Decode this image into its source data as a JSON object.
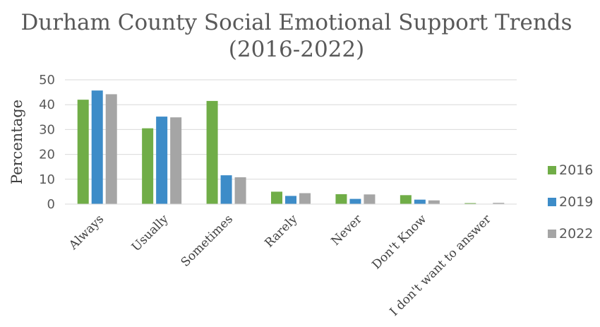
{
  "chart_data": {
    "type": "bar",
    "title": "Durham County Social Emotional Support Trends",
    "subtitle": "(2016-2022)",
    "xlabel": "",
    "ylabel": "Percentage",
    "ylim": [
      0,
      50
    ],
    "yticks": [
      "0",
      "10",
      "20",
      "30",
      "40",
      "50"
    ],
    "grid": true,
    "legend_position": "right",
    "categories": [
      "Always",
      "Usually",
      "Sometimes",
      "Rarely",
      "Never",
      "Don't Know",
      "I don't want to answer"
    ],
    "series": [
      {
        "name": "2016",
        "color": "#70ad47",
        "values": [
          42,
          30.5,
          41.5,
          5,
          4,
          3.6,
          0.4
        ]
      },
      {
        "name": "2019",
        "color": "#3d8cc8",
        "values": [
          45.7,
          35.2,
          11.6,
          3.3,
          2.1,
          1.8,
          0
        ]
      },
      {
        "name": "2022",
        "color": "#a5a5a5",
        "values": [
          44.2,
          34.9,
          10.8,
          4.4,
          3.9,
          1.5,
          0.5
        ]
      }
    ]
  }
}
